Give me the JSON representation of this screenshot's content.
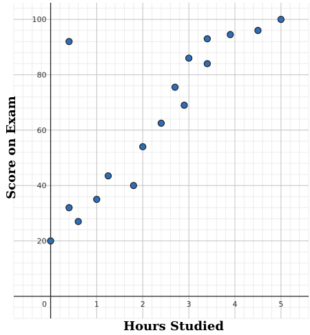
{
  "chart_data": {
    "type": "scatter",
    "title": "",
    "xlabel": "Hours Studied",
    "ylabel": "Score on Exam",
    "xlim": [
      -0.8,
      5.6
    ],
    "ylim": [
      -8,
      106
    ],
    "x_ticks": [
      0,
      1,
      2,
      3,
      4,
      5
    ],
    "y_ticks": [
      20,
      40,
      60,
      80,
      100
    ],
    "x_tick_labels": [
      "0",
      "1",
      "2",
      "3",
      "4",
      "5"
    ],
    "y_tick_labels": [
      "20",
      "40",
      "60",
      "80",
      "100"
    ],
    "x_minor_step": 0.2,
    "y_minor_step": 4,
    "grid": true,
    "legend": "none",
    "series": [
      {
        "name": "",
        "color": "#2f6db5",
        "edge_color": "#1a1a1a",
        "points": [
          {
            "x": 0.0,
            "y": 20
          },
          {
            "x": 0.4,
            "y": 92
          },
          {
            "x": 0.4,
            "y": 32
          },
          {
            "x": 0.6,
            "y": 27
          },
          {
            "x": 1.0,
            "y": 35
          },
          {
            "x": 1.25,
            "y": 43.5
          },
          {
            "x": 1.8,
            "y": 40
          },
          {
            "x": 2.0,
            "y": 54
          },
          {
            "x": 2.4,
            "y": 62.5
          },
          {
            "x": 2.7,
            "y": 75.5
          },
          {
            "x": 2.9,
            "y": 69
          },
          {
            "x": 3.0,
            "y": 86
          },
          {
            "x": 3.4,
            "y": 93
          },
          {
            "x": 3.4,
            "y": 84
          },
          {
            "x": 3.9,
            "y": 94.5
          },
          {
            "x": 4.5,
            "y": 96
          },
          {
            "x": 5.0,
            "y": 100
          }
        ]
      }
    ]
  }
}
